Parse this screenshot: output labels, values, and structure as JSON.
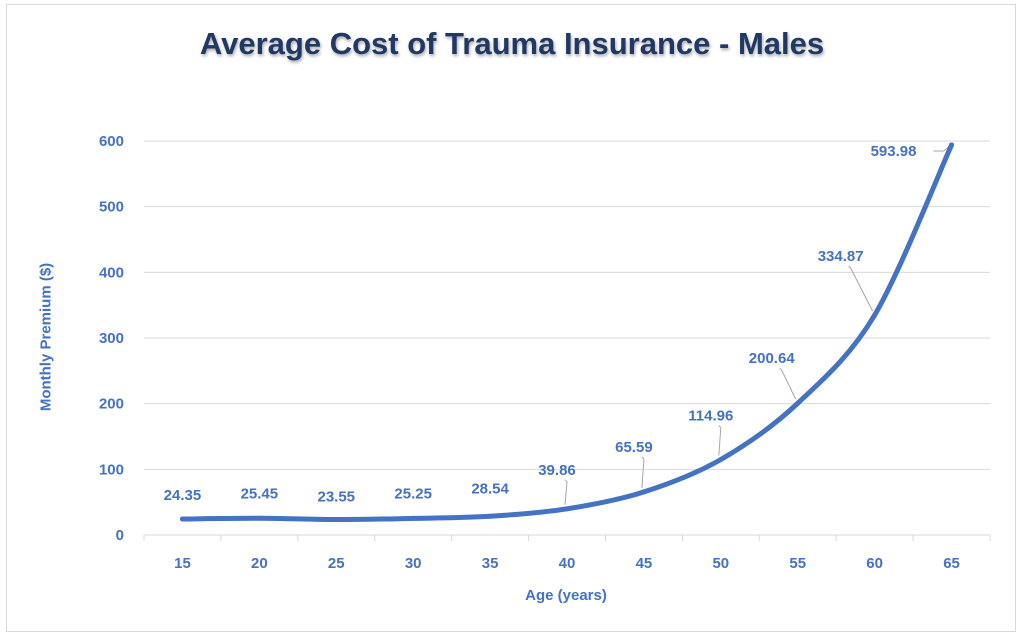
{
  "chart_data": {
    "type": "line",
    "title": "Average Cost of Trauma Insurance - Males",
    "xlabel": "Age (years)",
    "ylabel": "Monthly Premium ($)",
    "categories": [
      "15",
      "20",
      "25",
      "30",
      "35",
      "40",
      "45",
      "50",
      "55",
      "60",
      "65"
    ],
    "series": [
      {
        "values": [
          24.35,
          25.45,
          23.55,
          25.25,
          28.54,
          39.86,
          65.59,
          114.96,
          200.64,
          334.87,
          593.98
        ],
        "labels": [
          "24.35",
          "25.45",
          "23.55",
          "25.25",
          "28.54",
          "39.86",
          "65.59",
          "114.96",
          "200.64",
          "334.87",
          "593.98"
        ]
      }
    ],
    "ylim": [
      0,
      600
    ],
    "yticks": [
      "0",
      "100",
      "200",
      "300",
      "400",
      "500",
      "600"
    ],
    "grid": true,
    "colors": {
      "line": "#4472c4",
      "title": "#1f3864",
      "grid": "#d9d9d9",
      "leader": "#a6a6a6"
    }
  }
}
